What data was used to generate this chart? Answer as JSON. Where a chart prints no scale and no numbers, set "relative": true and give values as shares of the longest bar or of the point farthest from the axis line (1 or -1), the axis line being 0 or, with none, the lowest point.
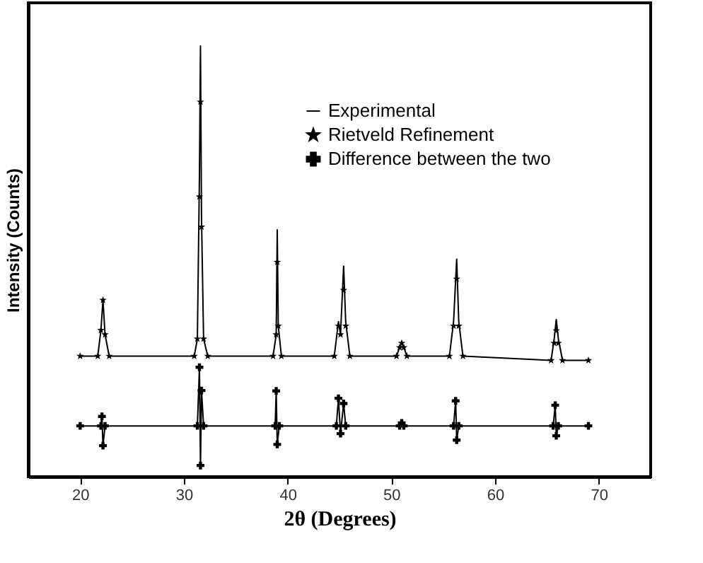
{
  "chart_data": {
    "type": "line",
    "relative": true,
    "xlabel": "2θ (Degrees)",
    "ylabel": "Intensity (Counts)",
    "xlim": [
      15,
      75
    ],
    "xticks": [
      20,
      30,
      40,
      50,
      60,
      70
    ],
    "legend": "top right",
    "grid": false,
    "series": [
      {
        "name": "Experimental",
        "color": "#000000",
        "marker": "none",
        "x": [
          20,
          21.7,
          22.0,
          22.2,
          22.4,
          22.8,
          31.0,
          31.3,
          31.5,
          31.6,
          31.7,
          31.9,
          32.3,
          38.6,
          38.9,
          39.0,
          39.1,
          39.4,
          44.5,
          44.9,
          45.1,
          45.4,
          45.6,
          46.0,
          50.5,
          50.8,
          51.0,
          51.2,
          51.5,
          55.6,
          56.0,
          56.3,
          56.5,
          56.9,
          65.4,
          65.7,
          65.9,
          66.1,
          66.5,
          69
        ],
        "values": [
          0.28,
          0.28,
          0.34,
          0.41,
          0.33,
          0.28,
          0.28,
          0.32,
          0.7,
          1.0,
          0.6,
          0.32,
          0.28,
          0.28,
          0.33,
          0.573,
          0.35,
          0.28,
          0.28,
          0.36,
          0.33,
          0.489,
          0.36,
          0.28,
          0.28,
          0.3,
          0.31,
          0.3,
          0.28,
          0.28,
          0.36,
          0.505,
          0.36,
          0.28,
          0.27,
          0.32,
          0.365,
          0.32,
          0.27,
          0.27
        ]
      },
      {
        "name": "Rietveld  Refinement",
        "color": "#000000",
        "type": "scatter",
        "marker": "star",
        "x": [
          20,
          21.7,
          22.0,
          22.2,
          22.4,
          22.8,
          31.0,
          31.3,
          31.5,
          31.6,
          31.7,
          31.9,
          32.3,
          38.6,
          38.9,
          39.0,
          39.1,
          39.4,
          44.5,
          44.9,
          45.1,
          45.4,
          45.6,
          46.0,
          50.5,
          50.8,
          51.0,
          51.2,
          51.5,
          55.6,
          56.0,
          56.3,
          56.5,
          56.9,
          65.4,
          65.7,
          65.9,
          66.1,
          66.5,
          69
        ],
        "values": [
          0.28,
          0.28,
          0.34,
          0.41,
          0.33,
          0.28,
          0.28,
          0.32,
          0.65,
          0.87,
          0.58,
          0.32,
          0.28,
          0.28,
          0.33,
          0.498,
          0.35,
          0.28,
          0.28,
          0.35,
          0.33,
          0.433,
          0.35,
          0.28,
          0.28,
          0.3,
          0.31,
          0.3,
          0.28,
          0.28,
          0.35,
          0.459,
          0.35,
          0.28,
          0.27,
          0.31,
          0.339,
          0.31,
          0.27,
          0.27
        ]
      },
      {
        "name": "Difference between the two",
        "color": "#000000",
        "marker": "cross",
        "x": [
          20,
          22.0,
          22.1,
          22.2,
          22.4,
          31.3,
          31.5,
          31.6,
          31.7,
          31.9,
          38.8,
          38.9,
          39.0,
          39.2,
          44.7,
          44.9,
          45.1,
          45.4,
          45.6,
          50.8,
          51.0,
          51.2,
          56.0,
          56.2,
          56.3,
          56.5,
          65.6,
          65.8,
          65.9,
          66.1,
          69
        ],
        "values": [
          0.118,
          0.118,
          0.14,
          0.072,
          0.118,
          0.118,
          0.254,
          0.026,
          0.2,
          0.118,
          0.118,
          0.199,
          0.075,
          0.118,
          0.118,
          0.182,
          0.1,
          0.17,
          0.118,
          0.118,
          0.125,
          0.118,
          0.118,
          0.176,
          0.085,
          0.118,
          0.118,
          0.166,
          0.095,
          0.118,
          0.118
        ]
      }
    ]
  }
}
